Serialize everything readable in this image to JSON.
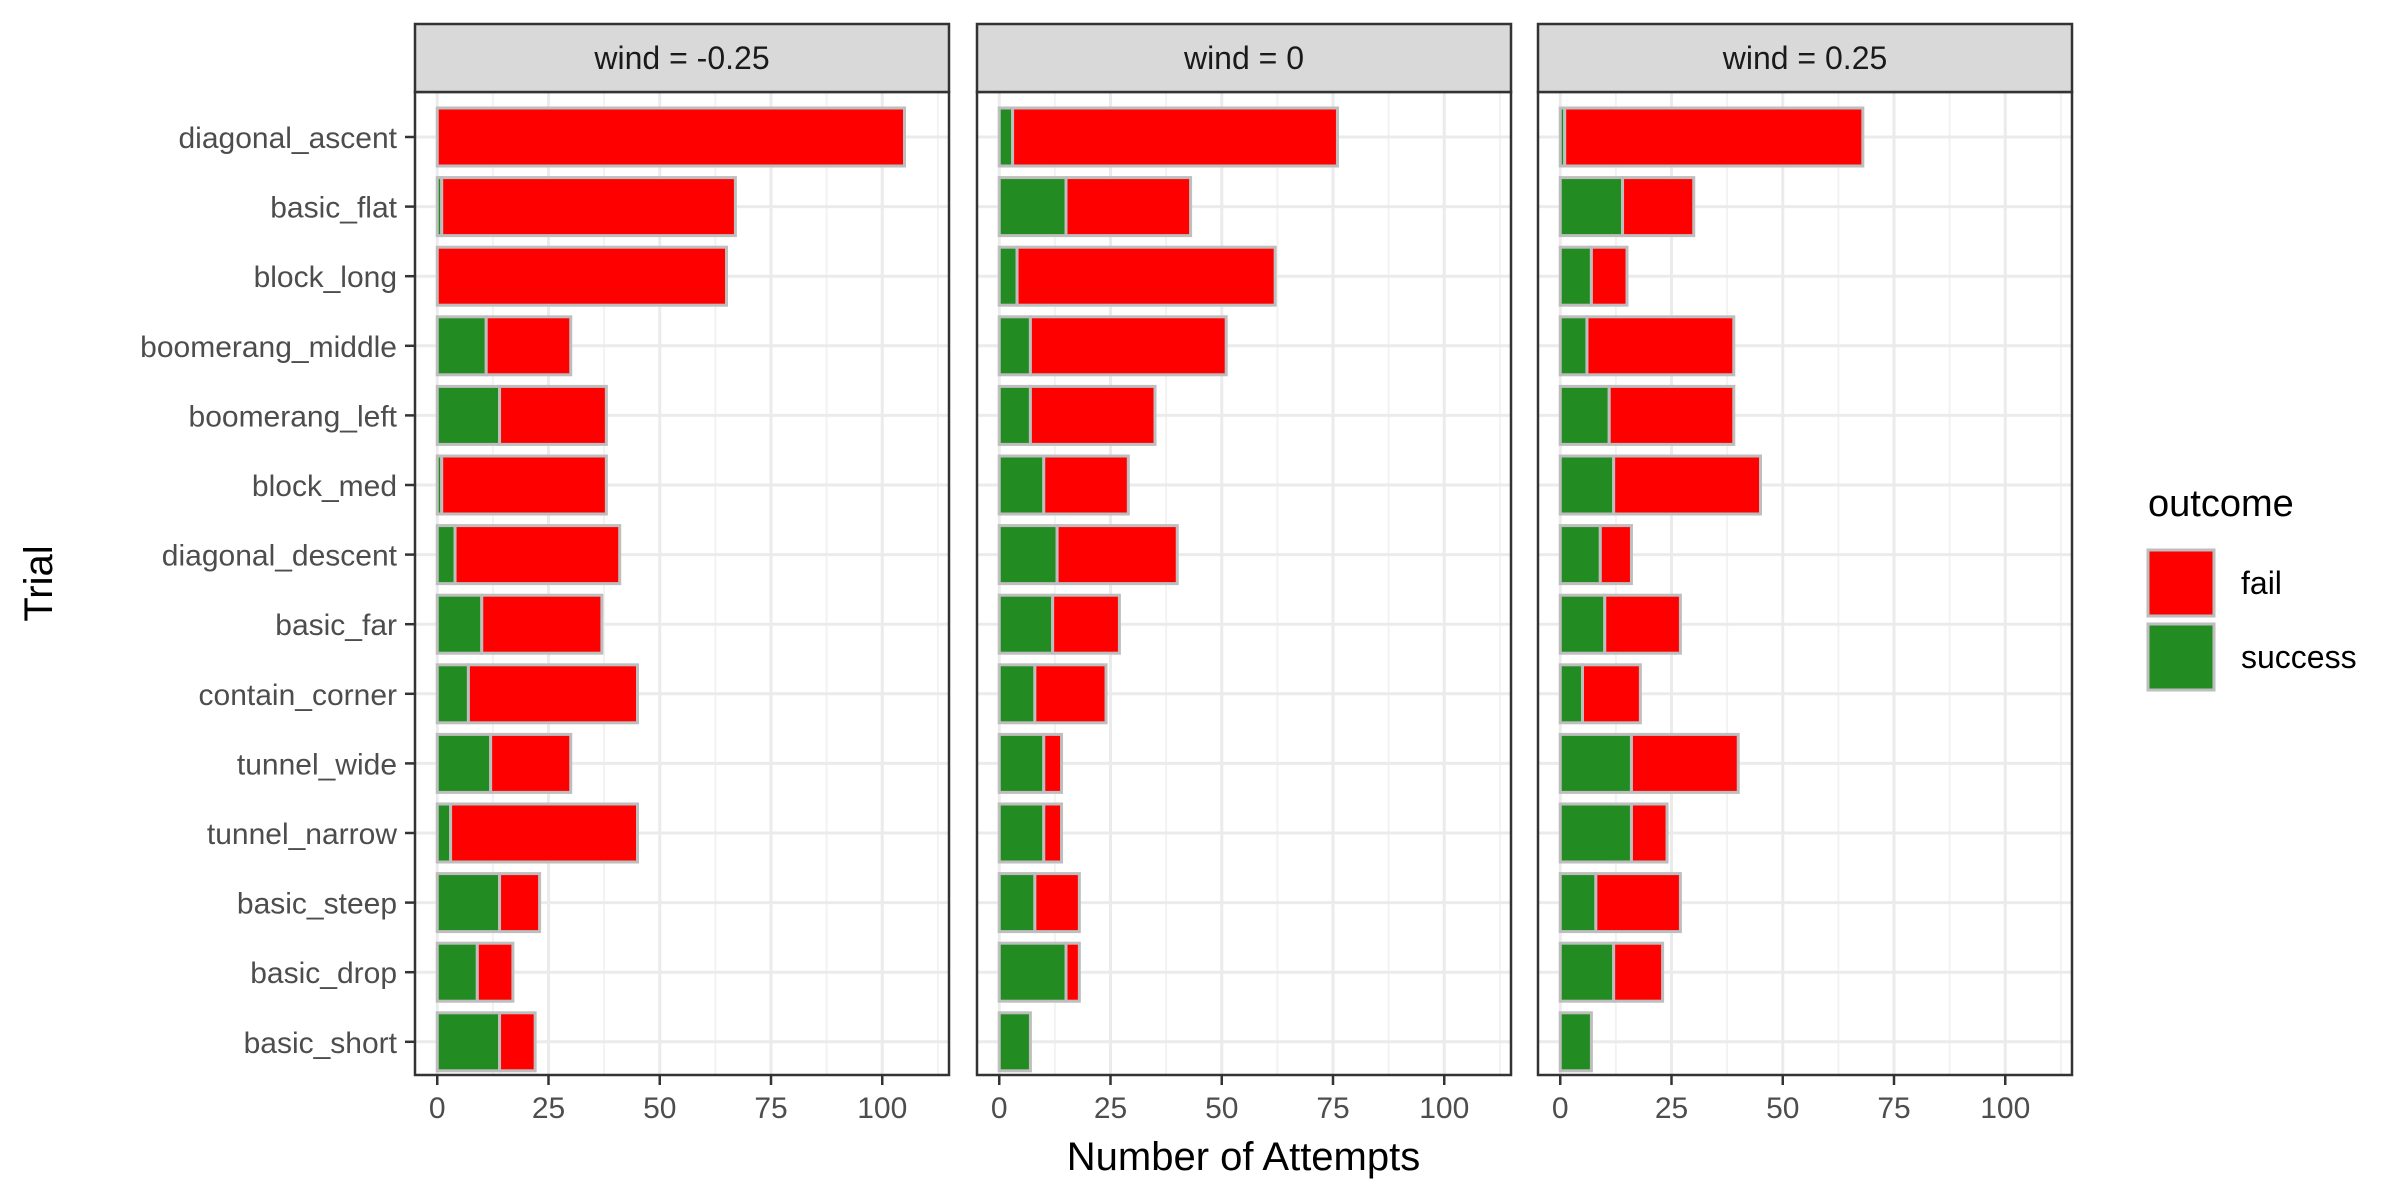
{
  "chart_data": {
    "type": "bar",
    "orientation": "horizontal",
    "stacked": true,
    "xlabel": "Number of Attempts",
    "ylabel": "Trial",
    "xlim": [
      -5,
      115
    ],
    "x_ticks": [
      0,
      25,
      50,
      75,
      100
    ],
    "grid": true,
    "legend": {
      "title": "outcome",
      "placement": "right",
      "entries": [
        {
          "name": "fail",
          "color": "#FF0000"
        },
        {
          "name": "success",
          "color": "#228B22"
        }
      ]
    },
    "categories": [
      "diagonal_ascent",
      "basic_flat",
      "block_long",
      "boomerang_middle",
      "boomerang_left",
      "block_med",
      "diagonal_descent",
      "basic_far",
      "contain_corner",
      "tunnel_wide",
      "tunnel_narrow",
      "basic_steep",
      "basic_drop",
      "basic_short"
    ],
    "panels": [
      {
        "label": "wind = -0.25",
        "series": [
          {
            "name": "success",
            "values": [
              0,
              1,
              0,
              11,
              14,
              1,
              4,
              10,
              7,
              12,
              3,
              14,
              9,
              14
            ]
          },
          {
            "name": "fail",
            "values": [
              105,
              66,
              65,
              19,
              24,
              37,
              37,
              27,
              38,
              18,
              42,
              9,
              8,
              8
            ]
          }
        ]
      },
      {
        "label": "wind = 0",
        "series": [
          {
            "name": "success",
            "values": [
              3,
              15,
              4,
              7,
              7,
              10,
              13,
              12,
              8,
              10,
              10,
              8,
              15,
              7
            ]
          },
          {
            "name": "fail",
            "values": [
              73,
              28,
              58,
              44,
              28,
              19,
              27,
              15,
              16,
              4,
              4,
              10,
              3,
              0
            ]
          }
        ]
      },
      {
        "label": "wind = 0.25",
        "series": [
          {
            "name": "success",
            "values": [
              1,
              14,
              7,
              6,
              11,
              12,
              9,
              10,
              5,
              16,
              16,
              8,
              12,
              7
            ]
          },
          {
            "name": "fail",
            "values": [
              67,
              16,
              8,
              33,
              28,
              33,
              7,
              17,
              13,
              24,
              8,
              19,
              11,
              0
            ]
          }
        ]
      }
    ]
  }
}
